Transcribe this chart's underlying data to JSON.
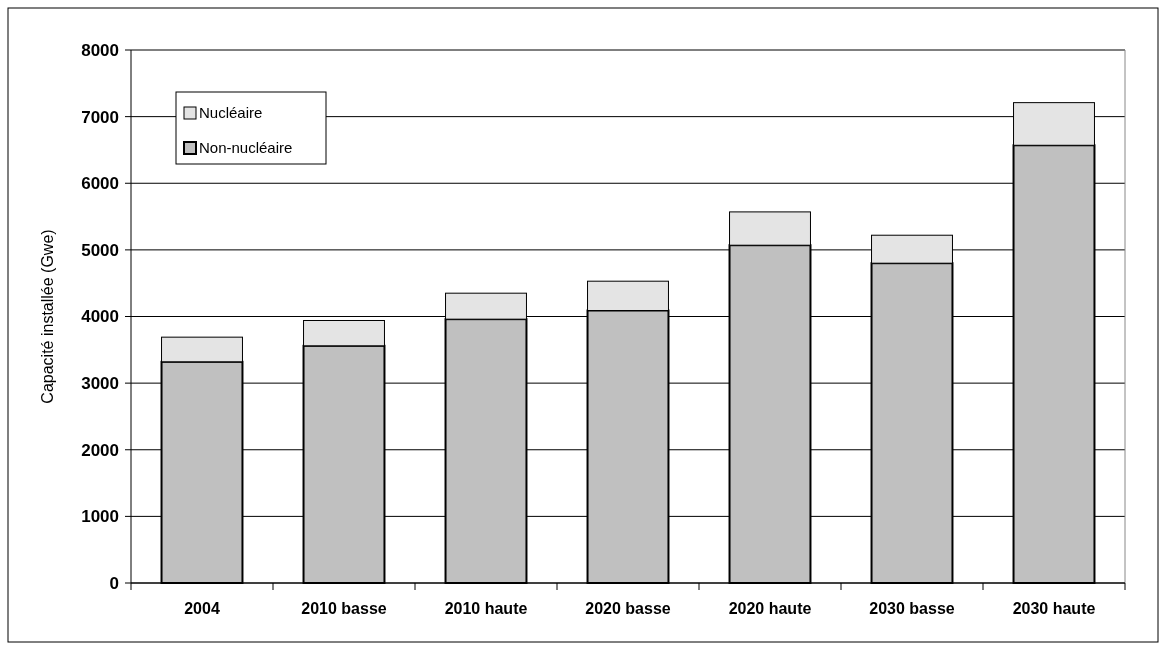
{
  "chart_data": {
    "type": "bar",
    "stacked": true,
    "ylabel": "Capacité installée (Gwe)",
    "categories": [
      "2004",
      "2010 basse",
      "2010 haute",
      "2020 basse",
      "2020 haute",
      "2030 basse",
      "2030 haute"
    ],
    "series": [
      {
        "name": "Non-nucléaire",
        "color": "#c0c0c0",
        "values": [
          3320,
          3560,
          3960,
          4090,
          5070,
          4800,
          6570
        ]
      },
      {
        "name": "Nucléaire",
        "color": "#e4e4e4",
        "values": [
          370,
          380,
          390,
          440,
          500,
          420,
          640
        ]
      }
    ],
    "ylim": [
      0,
      8000
    ],
    "yticks": [
      0,
      1000,
      2000,
      3000,
      4000,
      5000,
      6000,
      7000,
      8000
    ],
    "grid": "y",
    "legend": "top left"
  }
}
